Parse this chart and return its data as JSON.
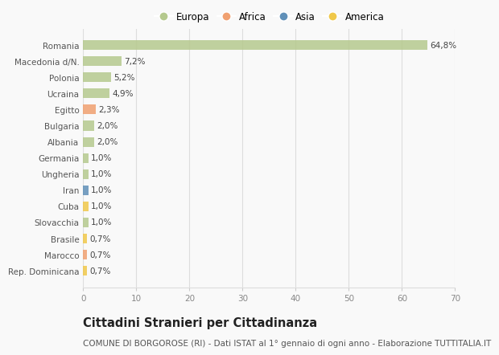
{
  "countries": [
    "Romania",
    "Macedonia d/N.",
    "Polonia",
    "Ucraina",
    "Egitto",
    "Bulgaria",
    "Albania",
    "Germania",
    "Ungheria",
    "Iran",
    "Cuba",
    "Slovacchia",
    "Brasile",
    "Marocco",
    "Rep. Dominicana"
  ],
  "values": [
    64.8,
    7.2,
    5.2,
    4.9,
    2.3,
    2.0,
    2.0,
    1.0,
    1.0,
    1.0,
    1.0,
    1.0,
    0.7,
    0.7,
    0.7
  ],
  "labels": [
    "64,8%",
    "7,2%",
    "5,2%",
    "4,9%",
    "2,3%",
    "2,0%",
    "2,0%",
    "1,0%",
    "1,0%",
    "1,0%",
    "1,0%",
    "1,0%",
    "0,7%",
    "0,7%",
    "0,7%"
  ],
  "continents": [
    "Europa",
    "Europa",
    "Europa",
    "Europa",
    "Africa",
    "Europa",
    "Europa",
    "Europa",
    "Europa",
    "Asia",
    "America",
    "Europa",
    "America",
    "Africa",
    "America"
  ],
  "continent_colors": {
    "Europa": "#b5c98e",
    "Africa": "#f0a070",
    "Asia": "#6090b8",
    "America": "#f0c84a"
  },
  "legend_order": [
    "Europa",
    "Africa",
    "Asia",
    "America"
  ],
  "xlim": [
    0,
    70
  ],
  "xticks": [
    0,
    10,
    20,
    30,
    40,
    50,
    60,
    70
  ],
  "title": "Cittadini Stranieri per Cittadinanza",
  "subtitle": "COMUNE DI BORGOROSE (RI) - Dati ISTAT al 1° gennaio di ogni anno - Elaborazione TUTTITALIA.IT",
  "background_color": "#f9f9f9",
  "grid_color": "#dddddd",
  "bar_height": 0.6,
  "title_fontsize": 10.5,
  "subtitle_fontsize": 7.5,
  "label_fontsize": 7.5,
  "tick_fontsize": 7.5,
  "legend_fontsize": 8.5
}
